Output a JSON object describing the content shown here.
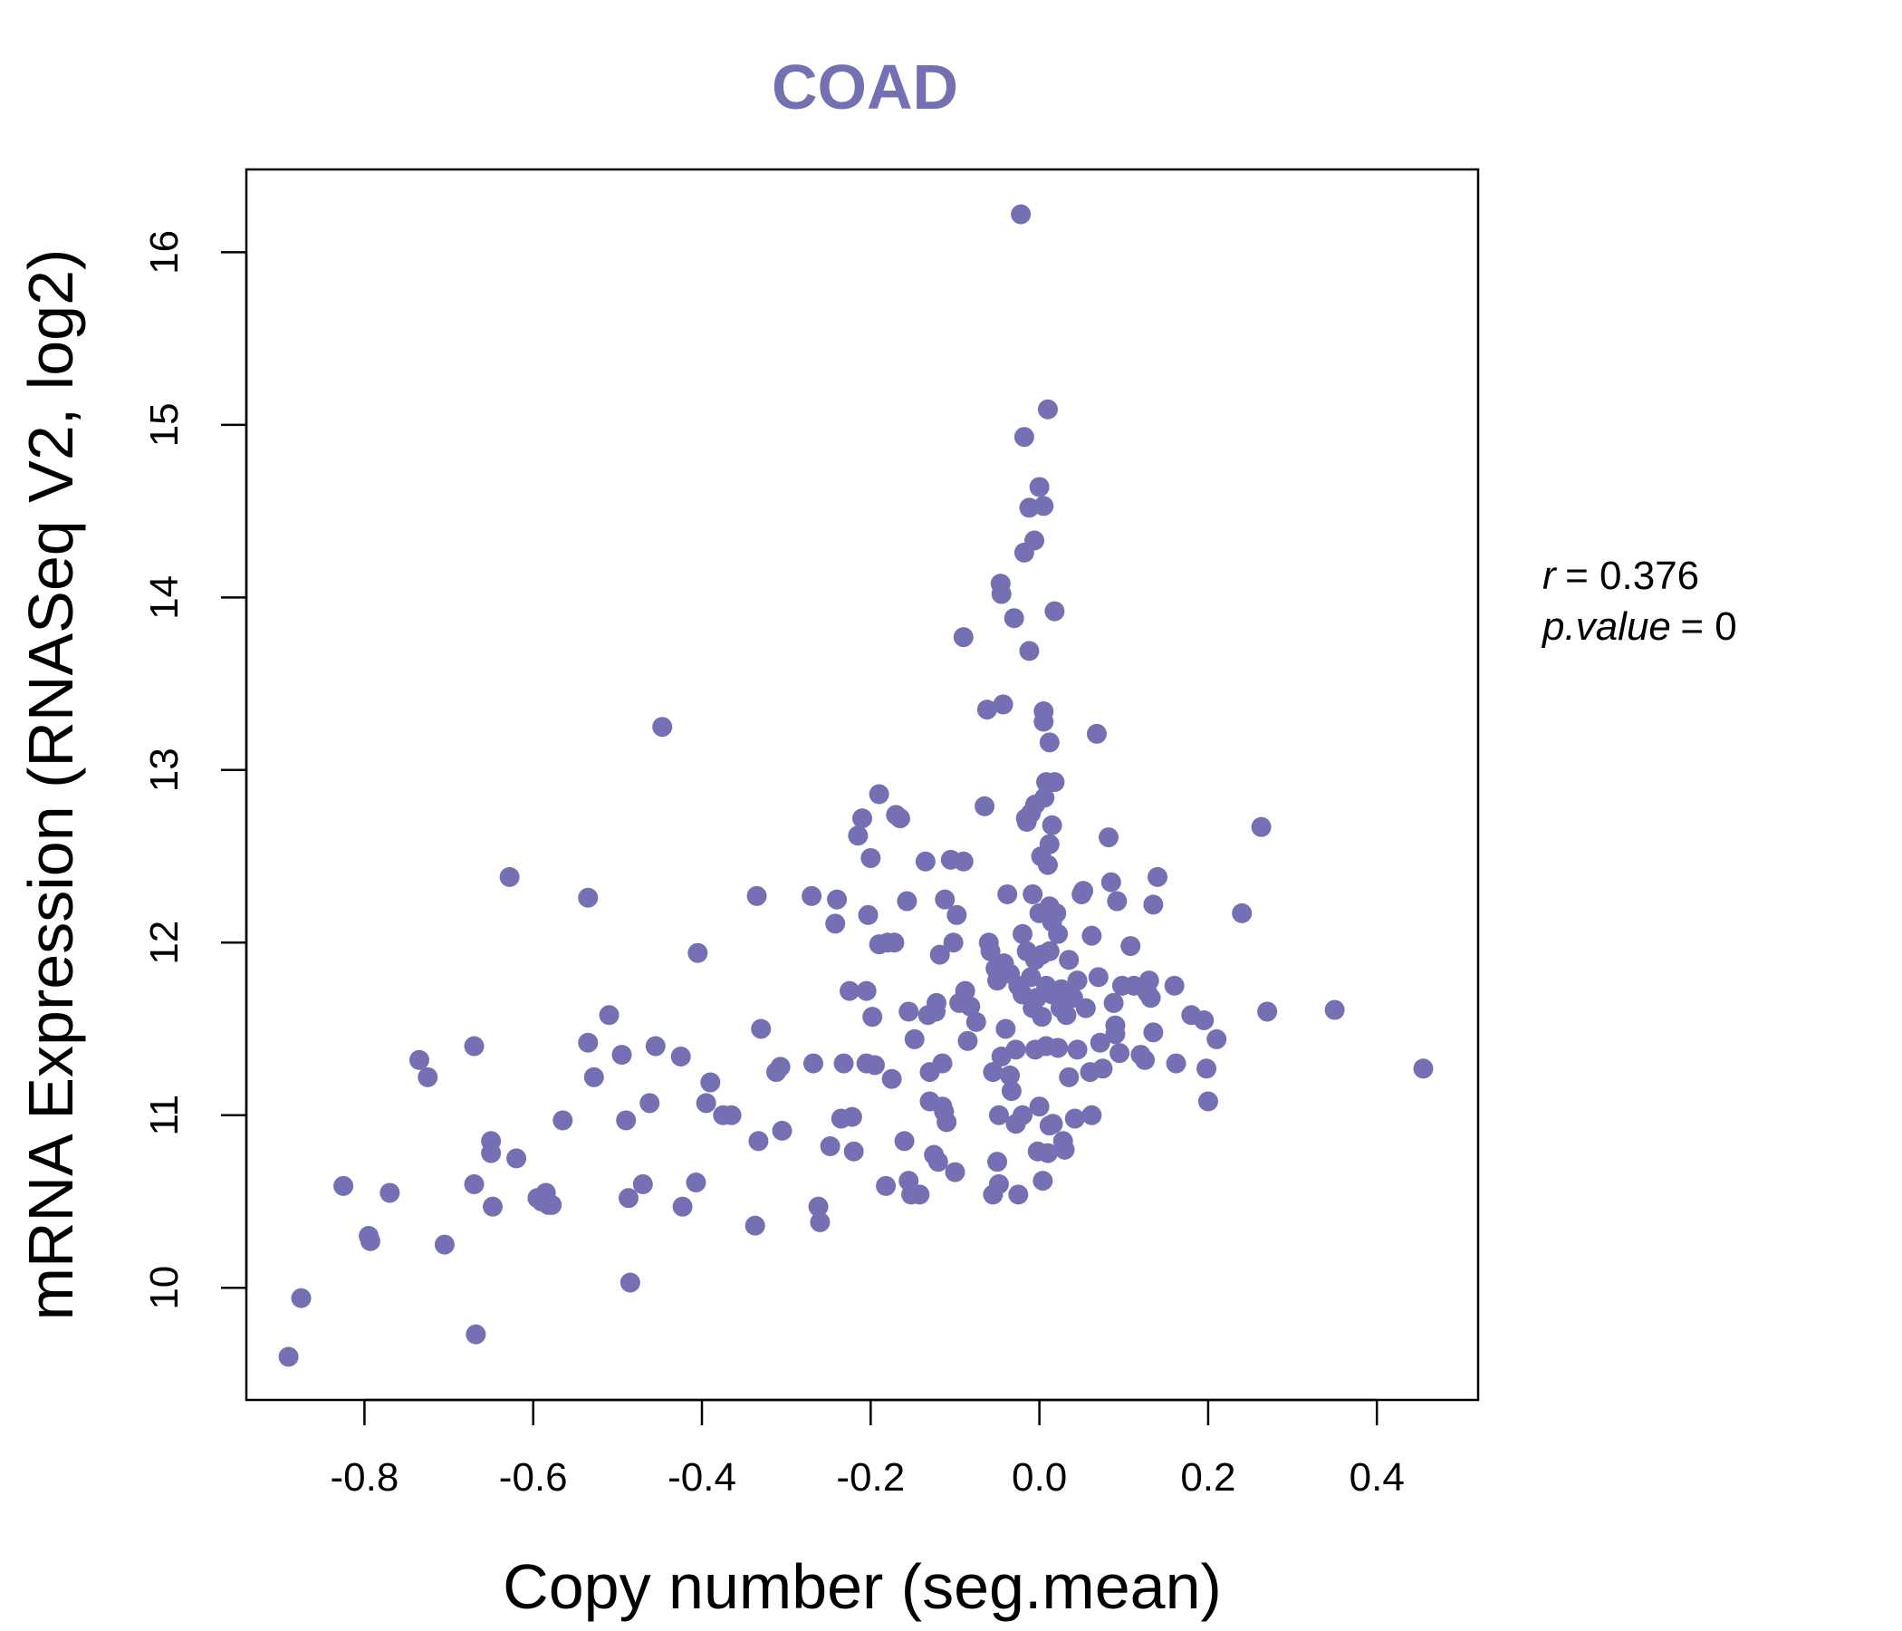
{
  "chart_data": {
    "type": "scatter",
    "title": "COAD",
    "xlabel": "Copy number (seg.mean)",
    "ylabel": "mRNA Expression (RNASeq V2, log2)",
    "xlim": [
      -0.94,
      0.52
    ],
    "ylim": [
      9.35,
      16.48
    ],
    "x_ticks": [
      -0.8,
      -0.6,
      -0.4,
      -0.2,
      0.0,
      0.2,
      0.4
    ],
    "x_tick_labels": [
      "-0.8",
      "-0.6",
      "-0.4",
      "-0.2",
      "0.0",
      "0.2",
      "0.4"
    ],
    "y_ticks": [
      10,
      11,
      12,
      13,
      14,
      15,
      16
    ],
    "y_tick_labels": [
      "10",
      "11",
      "12",
      "13",
      "14",
      "15",
      "16"
    ],
    "grid": false,
    "point_color": "#7570b3",
    "stats": {
      "r_label": "r",
      "r_value": "0.376",
      "p_label": "p.value",
      "p_value": "0"
    },
    "points": [
      [
        -0.89,
        9.6
      ],
      [
        -0.875,
        9.94
      ],
      [
        -0.825,
        10.59
      ],
      [
        -0.795,
        10.3
      ],
      [
        -0.793,
        10.27
      ],
      [
        -0.77,
        10.55
      ],
      [
        -0.735,
        11.32
      ],
      [
        -0.725,
        11.22
      ],
      [
        -0.705,
        10.25
      ],
      [
        -0.67,
        11.4
      ],
      [
        -0.67,
        10.6
      ],
      [
        -0.668,
        9.73
      ],
      [
        -0.65,
        10.85
      ],
      [
        -0.65,
        10.78
      ],
      [
        -0.648,
        10.47
      ],
      [
        -0.628,
        12.38
      ],
      [
        -0.62,
        10.75
      ],
      [
        -0.595,
        10.52
      ],
      [
        -0.59,
        10.5
      ],
      [
        -0.585,
        10.55
      ],
      [
        -0.582,
        10.48
      ],
      [
        -0.578,
        10.48
      ],
      [
        -0.565,
        10.97
      ],
      [
        -0.535,
        11.42
      ],
      [
        -0.535,
        12.26
      ],
      [
        -0.528,
        11.22
      ],
      [
        -0.51,
        11.58
      ],
      [
        -0.495,
        11.35
      ],
      [
        -0.49,
        10.97
      ],
      [
        -0.487,
        10.52
      ],
      [
        -0.485,
        10.03
      ],
      [
        -0.47,
        10.6
      ],
      [
        -0.462,
        11.07
      ],
      [
        -0.455,
        11.4
      ],
      [
        -0.447,
        13.25
      ],
      [
        -0.425,
        11.34
      ],
      [
        -0.423,
        10.47
      ],
      [
        -0.407,
        10.61
      ],
      [
        -0.405,
        11.94
      ],
      [
        -0.395,
        11.07
      ],
      [
        -0.39,
        11.19
      ],
      [
        -0.375,
        11.0
      ],
      [
        -0.365,
        11.0
      ],
      [
        -0.337,
        10.36
      ],
      [
        -0.335,
        12.27
      ],
      [
        -0.333,
        10.85
      ],
      [
        -0.33,
        11.5
      ],
      [
        -0.312,
        11.25
      ],
      [
        -0.307,
        11.28
      ],
      [
        -0.305,
        10.91
      ],
      [
        -0.27,
        12.27
      ],
      [
        -0.268,
        11.3
      ],
      [
        -0.262,
        10.47
      ],
      [
        -0.26,
        10.38
      ],
      [
        -0.248,
        10.82
      ],
      [
        -0.242,
        12.11
      ],
      [
        -0.24,
        12.25
      ],
      [
        -0.235,
        10.98
      ],
      [
        -0.232,
        11.3
      ],
      [
        -0.225,
        11.72
      ],
      [
        -0.222,
        10.99
      ],
      [
        -0.22,
        10.79
      ],
      [
        -0.215,
        12.62
      ],
      [
        -0.21,
        12.72
      ],
      [
        -0.205,
        11.3
      ],
      [
        -0.205,
        11.72
      ],
      [
        -0.203,
        12.16
      ],
      [
        -0.2,
        12.49
      ],
      [
        -0.198,
        11.57
      ],
      [
        -0.195,
        11.29
      ],
      [
        -0.19,
        12.86
      ],
      [
        -0.19,
        11.99
      ],
      [
        -0.182,
        10.59
      ],
      [
        -0.18,
        12.0
      ],
      [
        -0.175,
        11.21
      ],
      [
        -0.172,
        12.0
      ],
      [
        -0.17,
        12.74
      ],
      [
        -0.165,
        12.72
      ],
      [
        -0.16,
        10.85
      ],
      [
        -0.157,
        12.24
      ],
      [
        -0.155,
        11.6
      ],
      [
        -0.155,
        10.62
      ],
      [
        -0.152,
        10.54
      ],
      [
        -0.148,
        11.44
      ],
      [
        -0.142,
        10.54
      ],
      [
        -0.135,
        12.47
      ],
      [
        -0.132,
        11.58
      ],
      [
        -0.13,
        11.25
      ],
      [
        -0.13,
        11.08
      ],
      [
        -0.125,
        10.77
      ],
      [
        -0.123,
        11.6
      ],
      [
        -0.122,
        11.65
      ],
      [
        -0.12,
        10.73
      ],
      [
        -0.118,
        11.93
      ],
      [
        -0.115,
        11.05
      ],
      [
        -0.115,
        11.3
      ],
      [
        -0.113,
        11.02
      ],
      [
        -0.112,
        12.25
      ],
      [
        -0.11,
        10.96
      ],
      [
        -0.105,
        12.48
      ],
      [
        -0.102,
        12.0
      ],
      [
        -0.1,
        10.67
      ],
      [
        -0.098,
        12.16
      ],
      [
        -0.095,
        11.65
      ],
      [
        -0.09,
        13.77
      ],
      [
        -0.09,
        12.47
      ],
      [
        -0.088,
        11.72
      ],
      [
        -0.085,
        11.43
      ],
      [
        -0.082,
        11.63
      ],
      [
        -0.075,
        11.54
      ],
      [
        -0.065,
        12.79
      ],
      [
        -0.062,
        13.35
      ],
      [
        -0.06,
        12.0
      ],
      [
        -0.058,
        11.95
      ],
      [
        -0.055,
        11.25
      ],
      [
        -0.055,
        10.54
      ],
      [
        -0.052,
        11.85
      ],
      [
        -0.05,
        11.78
      ],
      [
        -0.05,
        10.73
      ],
      [
        -0.048,
        11.0
      ],
      [
        -0.048,
        10.6
      ],
      [
        -0.046,
        14.08
      ],
      [
        -0.045,
        14.02
      ],
      [
        -0.045,
        11.34
      ],
      [
        -0.043,
        13.38
      ],
      [
        -0.042,
        11.88
      ],
      [
        -0.04,
        11.5
      ],
      [
        -0.038,
        12.28
      ],
      [
        -0.035,
        11.82
      ],
      [
        -0.035,
        11.23
      ],
      [
        -0.033,
        11.14
      ],
      [
        -0.03,
        13.88
      ],
      [
        -0.028,
        10.95
      ],
      [
        -0.028,
        11.38
      ],
      [
        -0.025,
        11.75
      ],
      [
        -0.025,
        10.54
      ],
      [
        -0.022,
        16.22
      ],
      [
        -0.02,
        12.05
      ],
      [
        -0.02,
        11.7
      ],
      [
        -0.02,
        11.0
      ],
      [
        -0.018,
        14.93
      ],
      [
        -0.018,
        14.26
      ],
      [
        -0.016,
        12.72
      ],
      [
        -0.015,
        12.7
      ],
      [
        -0.015,
        11.95
      ],
      [
        -0.012,
        13.69
      ],
      [
        -0.012,
        14.52
      ],
      [
        -0.01,
        12.75
      ],
      [
        -0.01,
        11.8
      ],
      [
        -0.008,
        12.28
      ],
      [
        -0.008,
        11.62
      ],
      [
        -0.006,
        14.33
      ],
      [
        -0.005,
        12.8
      ],
      [
        -0.005,
        11.9
      ],
      [
        -0.005,
        11.38
      ],
      [
        -0.003,
        11.68
      ],
      [
        -0.002,
        10.79
      ],
      [
        0.0,
        14.64
      ],
      [
        0.0,
        12.17
      ],
      [
        0.0,
        11.05
      ],
      [
        0.002,
        12.5
      ],
      [
        0.003,
        11.93
      ],
      [
        0.003,
        11.57
      ],
      [
        0.004,
        10.62
      ],
      [
        0.005,
        14.53
      ],
      [
        0.005,
        13.28
      ],
      [
        0.005,
        13.34
      ],
      [
        0.006,
        12.84
      ],
      [
        0.008,
        12.93
      ],
      [
        0.008,
        11.75
      ],
      [
        0.008,
        11.4
      ],
      [
        0.01,
        15.09
      ],
      [
        0.01,
        12.45
      ],
      [
        0.01,
        10.78
      ],
      [
        0.012,
        13.16
      ],
      [
        0.012,
        12.57
      ],
      [
        0.012,
        12.21
      ],
      [
        0.012,
        11.95
      ],
      [
        0.012,
        10.94
      ],
      [
        0.015,
        12.68
      ],
      [
        0.015,
        12.12
      ],
      [
        0.015,
        11.7
      ],
      [
        0.016,
        10.95
      ],
      [
        0.018,
        13.92
      ],
      [
        0.018,
        12.93
      ],
      [
        0.02,
        12.17
      ],
      [
        0.022,
        12.05
      ],
      [
        0.022,
        11.39
      ],
      [
        0.025,
        11.62
      ],
      [
        0.026,
        11.73
      ],
      [
        0.028,
        10.85
      ],
      [
        0.03,
        10.8
      ],
      [
        0.032,
        11.58
      ],
      [
        0.035,
        11.9
      ],
      [
        0.035,
        11.22
      ],
      [
        0.04,
        11.68
      ],
      [
        0.042,
        10.98
      ],
      [
        0.045,
        11.78
      ],
      [
        0.045,
        11.38
      ],
      [
        0.05,
        12.28
      ],
      [
        0.052,
        12.3
      ],
      [
        0.055,
        11.62
      ],
      [
        0.06,
        11.25
      ],
      [
        0.062,
        12.04
      ],
      [
        0.062,
        11.0
      ],
      [
        0.068,
        13.21
      ],
      [
        0.07,
        11.8
      ],
      [
        0.072,
        11.42
      ],
      [
        0.075,
        11.27
      ],
      [
        0.082,
        12.61
      ],
      [
        0.085,
        12.35
      ],
      [
        0.088,
        11.65
      ],
      [
        0.09,
        11.47
      ],
      [
        0.09,
        11.52
      ],
      [
        0.092,
        12.24
      ],
      [
        0.095,
        11.36
      ],
      [
        0.098,
        11.75
      ],
      [
        0.108,
        11.98
      ],
      [
        0.112,
        11.75
      ],
      [
        0.12,
        11.35
      ],
      [
        0.125,
        11.32
      ],
      [
        0.128,
        11.71
      ],
      [
        0.13,
        11.78
      ],
      [
        0.132,
        11.68
      ],
      [
        0.135,
        12.22
      ],
      [
        0.135,
        11.48
      ],
      [
        0.14,
        12.38
      ],
      [
        0.16,
        11.75
      ],
      [
        0.162,
        11.3
      ],
      [
        0.18,
        11.58
      ],
      [
        0.195,
        11.55
      ],
      [
        0.198,
        11.27
      ],
      [
        0.2,
        11.08
      ],
      [
        0.21,
        11.44
      ],
      [
        0.24,
        12.17
      ],
      [
        0.263,
        12.67
      ],
      [
        0.27,
        11.6
      ],
      [
        0.35,
        11.61
      ],
      [
        0.455,
        11.27
      ]
    ]
  }
}
